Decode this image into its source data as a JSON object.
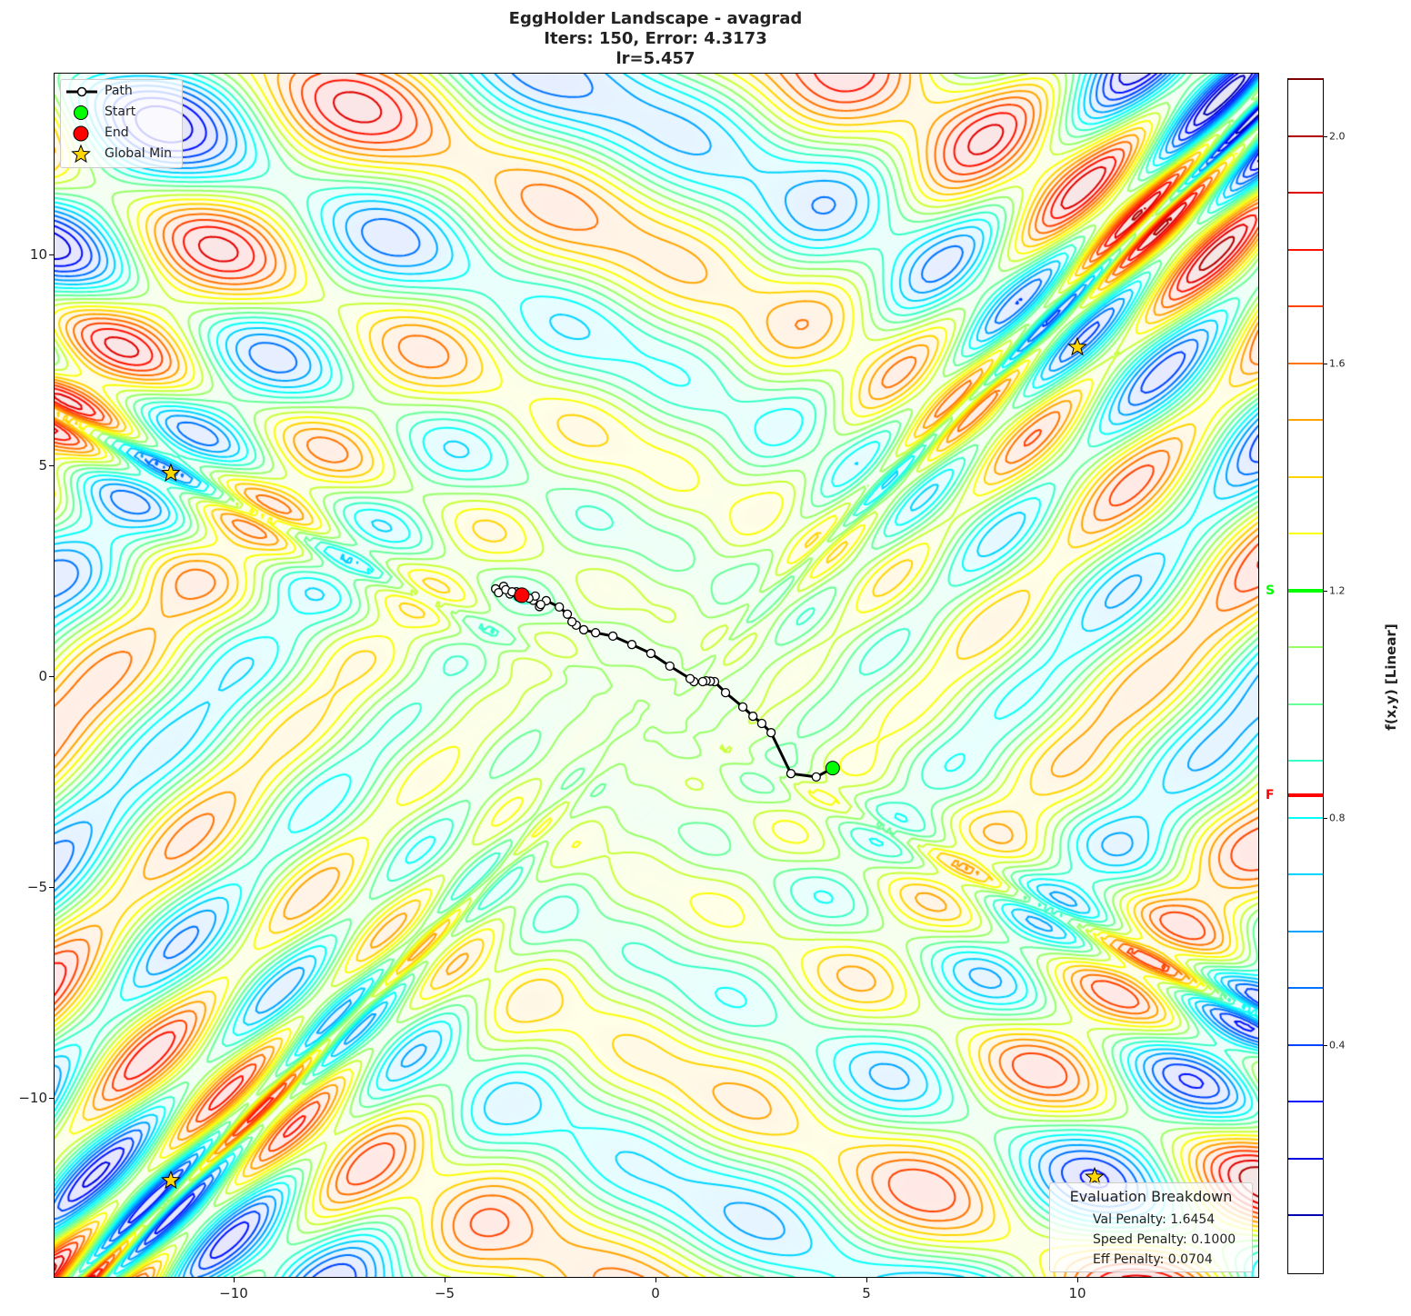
{
  "chart_data": {
    "type": "contour",
    "title_lines": [
      "EggHolder Landscape - avagrad",
      "Iters: 150, Error: 4.3173",
      "lr=5.457"
    ],
    "xlim": [
      -14.27,
      14.27
    ],
    "ylim": [
      -14.27,
      14.27
    ],
    "x_ticks": [
      "−10",
      "−5",
      "0",
      "5",
      "10"
    ],
    "x_tick_values": [
      -10,
      -5,
      0,
      5,
      10
    ],
    "y_ticks": [
      "−10",
      "−5",
      "0",
      "5",
      "10"
    ],
    "y_tick_values": [
      -10,
      -5,
      0,
      5,
      10
    ],
    "function": "EggHolder",
    "colormap": "jet",
    "colorbar": {
      "label": "f(x,y) [Linear]",
      "range": [
        0.0,
        2.1
      ],
      "levels_step": 0.1,
      "ticks": [
        "2.0",
        "1.6",
        "1.2",
        "0.8",
        "0.4"
      ],
      "tick_values": [
        2.0,
        1.6,
        1.2,
        0.8,
        0.4
      ],
      "start_marker": {
        "label": "S",
        "value": 1.2,
        "color": "#00ff00"
      },
      "final_marker": {
        "label": "F",
        "value": 0.84,
        "color": "#ff0000"
      }
    },
    "legend": {
      "placement": "upper-left",
      "entries": [
        "Path",
        "Start",
        "End",
        "Global Min"
      ]
    },
    "path": {
      "x": [
        4.2,
        3.81,
        3.21,
        2.74,
        2.52,
        2.31,
        2.07,
        1.66,
        1.4,
        1.3,
        1.2,
        1.12,
        0.91,
        0.82,
        0.34,
        -0.11,
        -0.56,
        -1.01,
        -1.42,
        -1.7,
        -1.88,
        -1.98,
        -2.09,
        -2.28,
        -2.59,
        -2.75,
        -2.72,
        -2.9,
        -2.85,
        -3.0,
        -3.1,
        -3.3,
        -3.45,
        -3.6,
        -3.79,
        -3.72,
        -3.55,
        -3.4,
        -3.25,
        -3.17
      ],
      "y": [
        -2.18,
        -2.39,
        -2.31,
        -1.34,
        -1.12,
        -0.95,
        -0.73,
        -0.39,
        -0.13,
        -0.12,
        -0.11,
        -0.13,
        -0.13,
        -0.06,
        0.24,
        0.54,
        0.75,
        0.95,
        1.03,
        1.1,
        1.21,
        1.29,
        1.47,
        1.64,
        1.79,
        1.65,
        1.7,
        1.8,
        1.9,
        1.85,
        1.95,
        2.0,
        1.95,
        2.13,
        2.07,
        1.98,
        2.05,
        2.0,
        1.88,
        1.92
      ],
      "color": "#000000"
    },
    "start": {
      "x": 4.2,
      "y": -2.18,
      "color": "#00ff00"
    },
    "end": {
      "x": -3.17,
      "y": 1.92,
      "color": "#ff0000"
    },
    "global_min": [
      {
        "x": -11.49,
        "y": 4.81
      },
      {
        "x": 10.0,
        "y": 7.8
      },
      {
        "x": -11.49,
        "y": -11.96
      },
      {
        "x": 10.41,
        "y": -11.88
      }
    ],
    "star_color": "#ffd700",
    "evaluation": {
      "title": "Evaluation Breakdown",
      "lines": [
        "Val Penalty: 1.6454",
        "Speed Penalty: 0.1000",
        "Eff Penalty: 0.0704"
      ]
    }
  }
}
